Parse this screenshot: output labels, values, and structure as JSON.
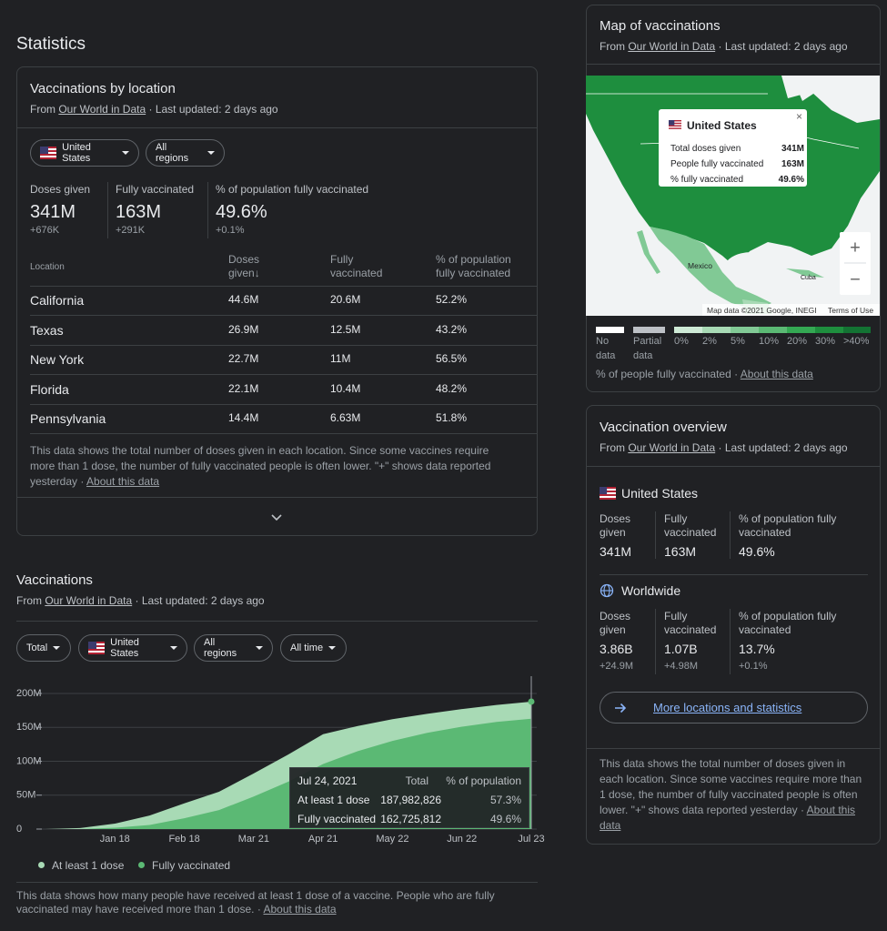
{
  "page_title": "Statistics",
  "by_location": {
    "title": "Vaccinations by location",
    "source_prefix": "From",
    "source": "Our World in Data",
    "updated": "· Last updated: 2 days ago",
    "dropdowns": [
      "United States",
      "All regions"
    ],
    "summary": [
      {
        "label": "Doses given",
        "value": "341M",
        "change": "+676K"
      },
      {
        "label": "Fully vaccinated",
        "value": "163M",
        "change": "+291K"
      },
      {
        "label": "% of population fully vaccinated",
        "value": "49.6%",
        "change": "+0.1%"
      }
    ],
    "headers": [
      "Location",
      "Doses given↓",
      "Fully vaccinated",
      "% of population fully vaccinated"
    ],
    "rows": [
      [
        "California",
        "44.6M",
        "20.6M",
        "52.2%"
      ],
      [
        "Texas",
        "26.9M",
        "12.5M",
        "43.2%"
      ],
      [
        "New York",
        "22.7M",
        "11M",
        "56.5%"
      ],
      [
        "Florida",
        "22.1M",
        "10.4M",
        "48.2%"
      ],
      [
        "Pennsylvania",
        "14.4M",
        "6.63M",
        "51.8%"
      ]
    ],
    "note": "This data shows the total number of doses given in each location. Since some vaccines require more than 1 dose, the number of fully vaccinated people is often lower. \"+\" shows data reported yesterday ·",
    "about": "About this data"
  },
  "vaccinations": {
    "title": "Vaccinations",
    "source_prefix": "From",
    "source": "Our World in Data",
    "updated": "· Last updated: 2 days ago",
    "filters": [
      "Total",
      "United States",
      "All regions",
      "All time"
    ],
    "chart_data": {
      "type": "area",
      "categories": [
        null,
        null,
        "Jan 18",
        null,
        "Feb 18",
        null,
        "Mar 21",
        null,
        "Apr 21",
        null,
        "May 22",
        null,
        "Jun 22",
        null,
        "Jul 23"
      ],
      "series": [
        {
          "name": "At least 1 dose",
          "color": "#a8dab5",
          "values": [
            0,
            1.5,
            8,
            20,
            38,
            55,
            82,
            110,
            140,
            152,
            162,
            170,
            177,
            183,
            187.98
          ]
        },
        {
          "name": "Fully vaccinated",
          "color": "#5bb974",
          "values": [
            0,
            0,
            2,
            6,
            16,
            28,
            48,
            70,
            96,
            115,
            130,
            142,
            151,
            158,
            162.73
          ]
        }
      ],
      "ylim": [
        0,
        200
      ],
      "yticks": [
        0,
        {
          "value": 50,
          "label": "50M"
        },
        {
          "value": 100,
          "label": "100M"
        },
        {
          "value": 150,
          "label": "150M"
        },
        {
          "value": 200,
          "label": "200M"
        }
      ],
      "grid": true
    },
    "tooltip": {
      "date": "Jul 24, 2021",
      "col_total": "Total",
      "col_pct": "% of population",
      "rows": [
        {
          "label": "At least 1 dose",
          "total": "187,982,826",
          "pct": "57.3%"
        },
        {
          "label": "Fully vaccinated",
          "total": "162,725,812",
          "pct": "49.6%"
        }
      ]
    },
    "note": "This data shows how many people have received at least 1 dose of a vaccine. People who are fully vaccinated may have received more than 1 dose. ·",
    "about": "About this data"
  },
  "map": {
    "title": "Map of vaccinations",
    "source_prefix": "From",
    "source": "Our World in Data",
    "updated": "· Last updated: 2 days ago",
    "tooltip": {
      "country": "United States",
      "rows": [
        {
          "label": "Total doses given",
          "value": "341M"
        },
        {
          "label": "People fully vaccinated",
          "value": "163M"
        },
        {
          "label": "% fully vaccinated",
          "value": "49.6%"
        }
      ]
    },
    "places": [
      "Mexico",
      "Cuba"
    ],
    "zoom": [
      "+",
      "−"
    ],
    "attribution": "Map data ©2021 Google, INEGI",
    "terms": "Terms of Use",
    "legend": [
      {
        "label": "No data",
        "color": "#ffffff"
      },
      {
        "label": "Partial data",
        "color": "#bdc1c6"
      },
      {
        "label": "0%",
        "color": "#ceead6"
      },
      {
        "label": "2%",
        "color": "#a8dab5"
      },
      {
        "label": "5%",
        "color": "#81c995"
      },
      {
        "label": "10%",
        "color": "#5bb974"
      },
      {
        "label": "20%",
        "color": "#34a853"
      },
      {
        "label": "30%",
        "color": "#1e8e3e"
      },
      {
        "label": ">40%",
        "color": "#137333"
      }
    ],
    "caption": "% of people fully vaccinated ·",
    "about": "About this data"
  },
  "overview": {
    "title": "Vaccination overview",
    "source_prefix": "From",
    "source": "Our World in Data",
    "updated": "· Last updated: 2 days ago",
    "regions": [
      {
        "name": "United States",
        "stats": [
          {
            "label": "Doses given",
            "value": "341M"
          },
          {
            "label": "Fully vaccinated",
            "value": "163M"
          },
          {
            "label": "% of population fully vaccinated",
            "value": "49.6%"
          }
        ]
      },
      {
        "name": "Worldwide",
        "stats": [
          {
            "label": "Doses given",
            "value": "3.86B",
            "change": "+24.9M"
          },
          {
            "label": "Fully vaccinated",
            "value": "1.07B",
            "change": "+4.98M"
          },
          {
            "label": "% of population fully vaccinated",
            "value": "13.7%",
            "change": "+0.1%"
          }
        ]
      }
    ],
    "link": "More locations and statistics",
    "note": "This data shows the total number of doses given in each location. Since some vaccines require more than 1 dose, the number of fully vaccinated people is often lower. \"+\" shows data reported yesterday ·",
    "about": "About this data"
  }
}
